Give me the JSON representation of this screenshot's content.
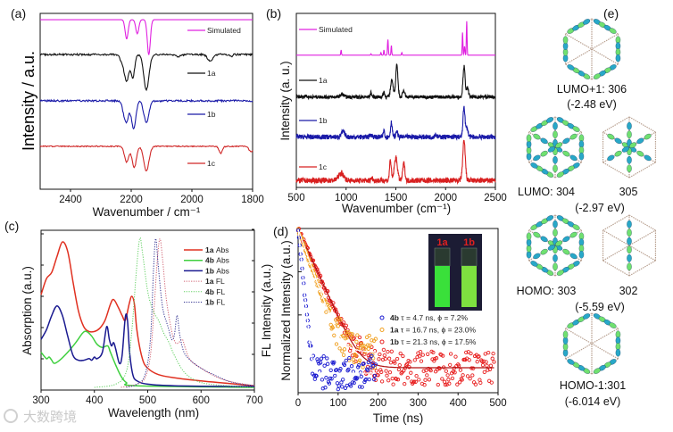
{
  "panels": {
    "a": "(a)",
    "b": "(b)",
    "c": "(c)",
    "d": "(d)",
    "e": "(e)"
  },
  "chart_data": [
    {
      "panel": "a",
      "type": "line",
      "title": "",
      "xlabel": "Wavenumber / cm⁻¹",
      "ylabel": "Intensity / a.u.",
      "xlim": [
        2500,
        1800
      ],
      "ylim": [
        0,
        10
      ],
      "xticks": [
        2400,
        2200,
        2000,
        1800
      ],
      "series": [
        {
          "name": "Simulated",
          "color": "#e020e0",
          "offset": 9.64,
          "direction": -1,
          "noise": 0,
          "peaks": [
            [
              2215,
              1.1,
              7
            ],
            [
              2180,
              0.8,
              7
            ],
            [
              2142,
              2.0,
              7
            ]
          ]
        },
        {
          "name": "1a",
          "color": "#111111",
          "offset": 7.66,
          "direction": -1,
          "noise": 0.05,
          "peaks": [
            [
              2215,
              1.5,
              10
            ],
            [
              2195,
              1.3,
              9
            ],
            [
              2150,
              2.0,
              12
            ],
            [
              2230,
              0.4,
              10
            ],
            [
              2045,
              0.1,
              15
            ],
            [
              1940,
              0.35,
              12
            ],
            [
              1870,
              0.1,
              5
            ]
          ]
        },
        {
          "name": "1b",
          "color": "#1a1aa8",
          "offset": 5.03,
          "direction": -1,
          "noise": 0.05,
          "peaks": [
            [
              2215,
              1.1,
              10
            ],
            [
              2192,
              1.6,
              10
            ],
            [
              2150,
              1.2,
              12
            ],
            [
              2225,
              0.4,
              8
            ]
          ]
        },
        {
          "name": "1c",
          "color": "#d02828",
          "offset": 2.44,
          "direction": -1,
          "noise": 0.03,
          "peaks": [
            [
              2215,
              0.9,
              10
            ],
            [
              2190,
              1.2,
              10
            ],
            [
              2150,
              1.4,
              12
            ],
            [
              1905,
              0.4,
              8
            ],
            [
              1805,
              0.3,
              10
            ]
          ]
        }
      ]
    },
    {
      "panel": "b",
      "type": "line",
      "title": "",
      "xlabel": "Wavenumber (cm⁻¹)",
      "ylabel": "Intensity (a. u.)",
      "xlim": [
        500,
        2500
      ],
      "ylim": [
        0,
        10
      ],
      "xticks": [
        500,
        1000,
        1500,
        2000,
        2500
      ],
      "series": [
        {
          "name": "Simulated",
          "color": "#e020e0",
          "offset": 7.6,
          "direction": 1,
          "noise": 0,
          "peaks": [
            [
              2212,
              1.95,
              5
            ],
            [
              2170,
              1.3,
              5
            ],
            [
              2190,
              0.5,
              6
            ],
            [
              1420,
              0.9,
              6
            ],
            [
              1455,
              0.55,
              5
            ],
            [
              1380,
              0.3,
              5
            ],
            [
              1350,
              0.15,
              5
            ],
            [
              950,
              0.3,
              5
            ],
            [
              1560,
              0.15,
              5
            ],
            [
              1250,
              0.08,
              5
            ]
          ]
        },
        {
          "name": "1a",
          "color": "#111111",
          "offset": 5.2,
          "direction": 1,
          "noise": 0.1,
          "peaks": [
            [
              1510,
              1.85,
              15
            ],
            [
              1460,
              1.0,
              18
            ],
            [
              1580,
              0.4,
              15
            ],
            [
              1380,
              0.3,
              10
            ],
            [
              1250,
              0.25,
              10
            ],
            [
              960,
              0.15,
              25
            ],
            [
              590,
              0.1,
              10
            ],
            [
              2185,
              1.75,
              15
            ],
            [
              2220,
              0.5,
              15
            ]
          ]
        },
        {
          "name": "1b",
          "color": "#1a1aa8",
          "offset": 2.9,
          "direction": 1,
          "noise": 0.14,
          "peaks": [
            [
              2185,
              1.75,
              14
            ],
            [
              2215,
              0.5,
              15
            ],
            [
              1455,
              0.85,
              12
            ],
            [
              1380,
              0.4,
              10
            ],
            [
              1510,
              0.35,
              12
            ],
            [
              970,
              0.3,
              25
            ],
            [
              1250,
              0.15,
              15
            ],
            [
              1900,
              0.15,
              15
            ]
          ]
        },
        {
          "name": "1c",
          "color": "#d82020",
          "offset": 0.4,
          "direction": 1,
          "noise": 0.15,
          "peaks": [
            [
              2185,
              2.25,
              18
            ],
            [
              1500,
              1.3,
              22
            ],
            [
              1445,
              1.2,
              12
            ],
            [
              1580,
              1.0,
              15
            ],
            [
              950,
              0.4,
              40
            ],
            [
              1260,
              0.15,
              15
            ]
          ]
        }
      ]
    },
    {
      "panel": "c",
      "type": "line",
      "title": "",
      "xlabel": "Wavelength (nm)",
      "ylabel": "Absorption (a.u.)",
      "y2label": "FL Intensity (a.u.)",
      "xlim": [
        300,
        700
      ],
      "ylim": [
        0,
        1
      ],
      "xticks": [
        300,
        400,
        500,
        600,
        700
      ],
      "series": [
        {
          "id": "1a",
          "kind": "Abs",
          "style": "solid",
          "color": "#e03020",
          "points": [
            [
              300,
              0.58
            ],
            [
              310,
              0.68
            ],
            [
              320,
              0.72
            ],
            [
              330,
              0.82
            ],
            [
              340,
              0.91
            ],
            [
              350,
              0.85
            ],
            [
              360,
              0.66
            ],
            [
              370,
              0.48
            ],
            [
              380,
              0.38
            ],
            [
              390,
              0.35
            ],
            [
              400,
              0.35
            ],
            [
              410,
              0.37
            ],
            [
              420,
              0.42
            ],
            [
              430,
              0.52
            ],
            [
              436,
              0.55
            ],
            [
              445,
              0.5
            ],
            [
              452,
              0.45
            ],
            [
              458,
              0.42
            ],
            [
              465,
              0.52
            ],
            [
              470,
              0.57
            ],
            [
              475,
              0.52
            ],
            [
              480,
              0.35
            ],
            [
              490,
              0.18
            ],
            [
              500,
              0.12
            ],
            [
              520,
              0.08
            ],
            [
              550,
              0.06
            ],
            [
              600,
              0.04
            ],
            [
              650,
              0.025
            ],
            [
              700,
              0.01
            ]
          ]
        },
        {
          "id": "4b",
          "kind": "Abs",
          "style": "solid",
          "color": "#40d040",
          "points": [
            [
              300,
              0.22
            ],
            [
              310,
              0.18
            ],
            [
              315,
              0.19
            ],
            [
              320,
              0.17
            ],
            [
              325,
              0.15
            ],
            [
              335,
              0.17
            ],
            [
              350,
              0.22
            ],
            [
              365,
              0.28
            ],
            [
              378,
              0.34
            ],
            [
              385,
              0.35
            ],
            [
              395,
              0.32
            ],
            [
              405,
              0.27
            ],
            [
              415,
              0.25
            ],
            [
              425,
              0.26
            ],
            [
              430,
              0.22
            ],
            [
              440,
              0.14
            ],
            [
              450,
              0.07
            ],
            [
              460,
              0.03
            ],
            [
              480,
              0.01
            ],
            [
              700,
              0.0
            ]
          ]
        },
        {
          "id": "1b",
          "kind": "Abs",
          "style": "solid",
          "color": "#1a1a90",
          "points": [
            [
              300,
              0.3
            ],
            [
              310,
              0.36
            ],
            [
              320,
              0.45
            ],
            [
              330,
              0.51
            ],
            [
              340,
              0.45
            ],
            [
              350,
              0.32
            ],
            [
              360,
              0.2
            ],
            [
              370,
              0.17
            ],
            [
              380,
              0.17
            ],
            [
              390,
              0.18
            ],
            [
              395,
              0.17
            ],
            [
              400,
              0.19
            ],
            [
              405,
              0.18
            ],
            [
              415,
              0.22
            ],
            [
              423,
              0.38
            ],
            [
              428,
              0.3
            ],
            [
              432,
              0.26
            ],
            [
              436,
              0.28
            ],
            [
              440,
              0.24
            ],
            [
              447,
              0.15
            ],
            [
              452,
              0.2
            ],
            [
              458,
              0.44
            ],
            [
              462,
              0.42
            ],
            [
              466,
              0.22
            ],
            [
              472,
              0.08
            ],
            [
              480,
              0.04
            ],
            [
              500,
              0.02
            ],
            [
              550,
              0.01
            ],
            [
              700,
              0.005
            ]
          ]
        },
        {
          "id": "1a",
          "kind": "FL",
          "style": "dotted",
          "color": "#d06070",
          "points": [
            [
              450,
              0.0
            ],
            [
              480,
              0.02
            ],
            [
              495,
              0.06
            ],
            [
              505,
              0.2
            ],
            [
              512,
              0.5
            ],
            [
              518,
              0.8
            ],
            [
              523,
              0.93
            ],
            [
              528,
              0.8
            ],
            [
              535,
              0.55
            ],
            [
              545,
              0.35
            ],
            [
              552,
              0.28
            ],
            [
              558,
              0.28
            ],
            [
              565,
              0.3
            ],
            [
              570,
              0.25
            ],
            [
              580,
              0.17
            ],
            [
              600,
              0.12
            ],
            [
              620,
              0.08
            ],
            [
              650,
              0.04
            ],
            [
              700,
              0.01
            ]
          ]
        },
        {
          "id": "4b",
          "kind": "FL",
          "style": "dotted",
          "color": "#60d060",
          "points": [
            [
              400,
              0.0
            ],
            [
              440,
              0.02
            ],
            [
              460,
              0.1
            ],
            [
              470,
              0.35
            ],
            [
              478,
              0.7
            ],
            [
              485,
              0.93
            ],
            [
              490,
              0.85
            ],
            [
              500,
              0.6
            ],
            [
              510,
              0.48
            ],
            [
              520,
              0.42
            ],
            [
              530,
              0.34
            ],
            [
              540,
              0.28
            ],
            [
              550,
              0.2
            ],
            [
              570,
              0.09
            ],
            [
              600,
              0.03
            ],
            [
              650,
              0.01
            ],
            [
              700,
              0.0
            ]
          ]
        },
        {
          "id": "1b",
          "kind": "FL",
          "style": "dotted",
          "color": "#303090",
          "points": [
            [
              460,
              0.0
            ],
            [
              480,
              0.02
            ],
            [
              495,
              0.08
            ],
            [
              505,
              0.3
            ],
            [
              511,
              0.75
            ],
            [
              515,
              0.93
            ],
            [
              520,
              0.75
            ],
            [
              528,
              0.5
            ],
            [
              538,
              0.38
            ],
            [
              545,
              0.3
            ],
            [
              550,
              0.33
            ],
            [
              555,
              0.45
            ],
            [
              560,
              0.33
            ],
            [
              568,
              0.22
            ],
            [
              580,
              0.17
            ],
            [
              600,
              0.12
            ],
            [
              630,
              0.07
            ],
            [
              660,
              0.03
            ],
            [
              700,
              0.01
            ]
          ]
        }
      ]
    },
    {
      "panel": "d",
      "type": "scatter",
      "title": "",
      "xlabel": "Time (ns)",
      "ylabel": "Normalized Intensity (a.u.)",
      "yscale": "log",
      "xlim": [
        0,
        500
      ],
      "ylim_log10": [
        -3.8,
        0
      ],
      "xticks": [
        0,
        100,
        200,
        300,
        400,
        500
      ],
      "series": [
        {
          "id": "4b",
          "label": "τ = 4.7 ns,   ϕ = 7.2%",
          "tau_ns": 4.7,
          "phi": "7.2%",
          "color": "#1a1ad0",
          "t_max": 195,
          "background": 0.00045
        },
        {
          "id": "1a",
          "label": "τ = 16.7 ns, ϕ = 23.0%",
          "tau_ns": 16.7,
          "phi": "23.0%",
          "color": "#f0a020",
          "t_max": 195,
          "background": 0.0014
        },
        {
          "id": "1b",
          "label": "τ = 21.3 ns, ϕ = 17.5%",
          "tau_ns": 21.3,
          "phi": "17.5%",
          "color": "#e82020",
          "t_max": 490,
          "background": 0.0006
        }
      ],
      "inset_labels": [
        "1a",
        "1b"
      ]
    }
  ],
  "orbitals": [
    {
      "labels": [
        "LUMO+1: 306"
      ],
      "energy": "(-2.48 eV)"
    },
    {
      "labels": [
        "LUMO: 304",
        "305"
      ],
      "energy": "(-2.97 eV)"
    },
    {
      "labels": [
        "HOMO: 303",
        "302"
      ],
      "energy": "(-5.59 eV)"
    },
    {
      "labels": [
        "HOMO-1:301"
      ],
      "energy": "(-6.014 eV)"
    }
  ],
  "watermark": "大数跨境"
}
